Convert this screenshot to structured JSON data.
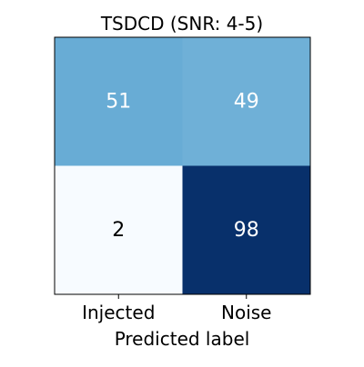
{
  "chart_data": {
    "type": "heatmap",
    "title": "TSDCD (SNR: 4-5)",
    "xlabel": "Predicted label",
    "ylabel": "",
    "x_categories": [
      "Injected",
      "Noise"
    ],
    "y_categories": [
      "",
      ""
    ],
    "values": [
      [
        51,
        49
      ],
      [
        2,
        98
      ]
    ],
    "color_range": [
      2,
      98
    ],
    "colormap": "Blues",
    "colors": {
      "low": "#f7fbff",
      "high": "#08306b",
      "text_on_dark": "#ffffff",
      "text_on_light": "#000000"
    },
    "grid": false,
    "legend": "none"
  }
}
